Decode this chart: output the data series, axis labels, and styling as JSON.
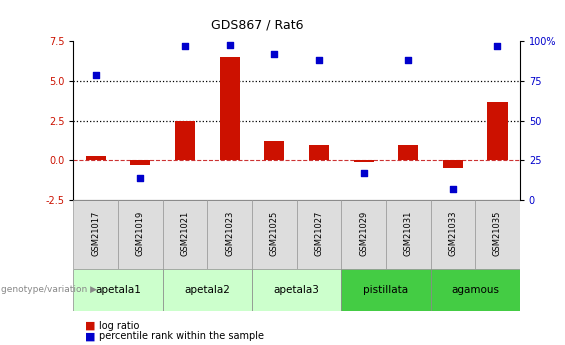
{
  "title": "GDS867 / Rat6",
  "samples": [
    "GSM21017",
    "GSM21019",
    "GSM21021",
    "GSM21023",
    "GSM21025",
    "GSM21027",
    "GSM21029",
    "GSM21031",
    "GSM21033",
    "GSM21035"
  ],
  "log_ratios": [
    0.3,
    -0.3,
    2.5,
    6.5,
    1.2,
    1.0,
    -0.1,
    1.0,
    -0.5,
    3.7
  ],
  "percentile_ranks": [
    79,
    14,
    97,
    98,
    92,
    88,
    17,
    88,
    7,
    97
  ],
  "ylim_left": [
    -2.5,
    7.5
  ],
  "ylim_right": [
    0,
    100
  ],
  "yticks_left": [
    -2.5,
    0.0,
    2.5,
    5.0,
    7.5
  ],
  "yticks_right": [
    0,
    25,
    50,
    75,
    100
  ],
  "hlines": [
    2.5,
    5.0
  ],
  "bar_color": "#CC1100",
  "dot_color": "#0000CC",
  "zero_line_color": "#CC3333",
  "genotype_groups": [
    {
      "label": "apetala1",
      "cols": [
        0,
        1
      ],
      "color": "#CCFFCC"
    },
    {
      "label": "apetala2",
      "cols": [
        2,
        3
      ],
      "color": "#CCFFCC"
    },
    {
      "label": "apetala3",
      "cols": [
        4,
        5
      ],
      "color": "#CCFFCC"
    },
    {
      "label": "pistillata",
      "cols": [
        6,
        7
      ],
      "color": "#44CC44"
    },
    {
      "label": "agamous",
      "cols": [
        8,
        9
      ],
      "color": "#44CC44"
    }
  ],
  "legend_bar_label": "log ratio",
  "legend_dot_label": "percentile rank within the sample",
  "genotype_label": "genotype/variation"
}
